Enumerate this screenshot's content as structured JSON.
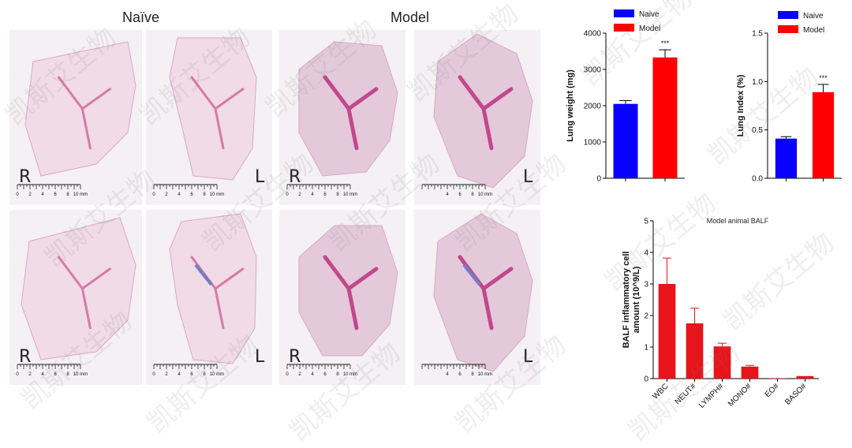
{
  "groups": {
    "naive": "Naïve",
    "model": "Model"
  },
  "panels": [
    {
      "side": "R"
    },
    {
      "side": "L"
    },
    {
      "side": "R"
    },
    {
      "side": "L"
    },
    {
      "side": "R"
    },
    {
      "side": "L"
    },
    {
      "side": "R"
    },
    {
      "side": "L"
    }
  ],
  "scale_bar": {
    "ticks": [
      "0",
      "2",
      "4",
      "6",
      "8",
      "10 mm"
    ],
    "ticks_cropped": [
      "4",
      "6",
      "8",
      "10 mm"
    ]
  },
  "watermark": "凯斯艾生物",
  "colors": {
    "naive": "#0a00ff",
    "model": "#ff0000",
    "tissue": "#e8b0c8",
    "stain_blue": "#6f7fc4"
  },
  "chart_data": [
    {
      "type": "bar",
      "legend": [
        "Naive",
        "Model"
      ],
      "categories": [
        "Naive",
        "Model"
      ],
      "values": [
        2050,
        3330
      ],
      "errors": [
        90,
        210
      ],
      "significance": "***",
      "ylabel": "Lung weight (mg)",
      "ylim": [
        0,
        4000
      ],
      "yticks": [
        "0",
        "1000",
        "2000",
        "3000",
        "4000"
      ]
    },
    {
      "type": "bar",
      "legend": [
        "Naive",
        "Model"
      ],
      "categories": [
        "Naive",
        "Model"
      ],
      "values": [
        0.41,
        0.89
      ],
      "errors": [
        0.02,
        0.08
      ],
      "significance": "***",
      "ylabel": "Lung Index (%)",
      "ylim": [
        0,
        1.5
      ],
      "yticks": [
        "0.0",
        "0.5",
        "1.0",
        "1.5"
      ]
    },
    {
      "type": "bar",
      "title": "Model animal BALF",
      "categories": [
        "WBC",
        "NEUT#",
        "LYMPH#",
        "MONO#",
        "EO#",
        "BASO#"
      ],
      "values": [
        3.0,
        1.75,
        1.02,
        0.38,
        0.01,
        0.08
      ],
      "errors": [
        0.82,
        0.48,
        0.1,
        0.04,
        0.0,
        0.0
      ],
      "ylabel": "BALF inflammatory cell amount (10^9/L)",
      "ylabel_lines": [
        "BALF inflammatory cell",
        "amount (10^9/L)"
      ],
      "ylim": [
        0,
        5
      ],
      "yticks": [
        "0",
        "1",
        "2",
        "3",
        "4",
        "5"
      ]
    }
  ]
}
